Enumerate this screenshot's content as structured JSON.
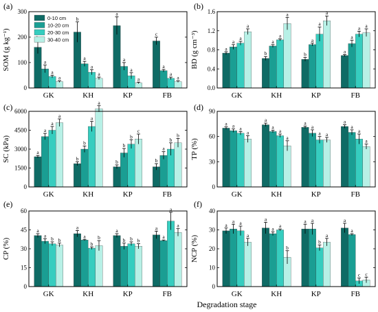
{
  "colors": [
    "#0f6b65",
    "#1a9e93",
    "#36cdbf",
    "#b7f0e6"
  ],
  "x_title": "Degradation stage",
  "chart_data": [
    {
      "type": "bar",
      "panel": "(a)",
      "ylabel": "SOM (g kg⁻¹)",
      "ylim": [
        0,
        300
      ],
      "yticks": [
        "0",
        "100",
        "200",
        "300"
      ],
      "categories": [
        "GK",
        "KH",
        "KP",
        "FB"
      ],
      "legend": [
        "0-10 cm",
        "10-20 cm",
        "20-30 cm",
        "30-40 cm"
      ],
      "series": [
        {
          "name": "0-10 cm",
          "values": [
            160,
            220,
            245,
            185
          ],
          "errors": [
            25,
            40,
            35,
            15
          ],
          "letters": [
            "b",
            "b",
            "a",
            "c"
          ]
        },
        {
          "name": "10-20 cm",
          "values": [
            75,
            95,
            85,
            68
          ],
          "errors": [
            15,
            10,
            15,
            5
          ],
          "letters": [
            "a",
            "a",
            "a",
            "a"
          ]
        },
        {
          "name": "20-30 cm",
          "values": [
            45,
            62,
            48,
            38
          ],
          "errors": [
            5,
            10,
            12,
            5
          ],
          "letters": [
            "a",
            "a",
            "a",
            "a"
          ]
        },
        {
          "name": "30-40 cm",
          "values": [
            25,
            38,
            20,
            25
          ],
          "errors": [
            3,
            5,
            3,
            3
          ],
          "letters": [
            "a",
            "a",
            "a",
            "a"
          ]
        }
      ]
    },
    {
      "type": "bar",
      "panel": "(b)",
      "ylabel": "BD (g cm⁻³)",
      "ylim": [
        0,
        1.6
      ],
      "yticks": [
        "0.0",
        "0.4",
        "0.8",
        "1.2",
        "1.6"
      ],
      "categories": [
        "GK",
        "KH",
        "KP",
        "FB"
      ],
      "series": [
        {
          "name": "0-10 cm",
          "values": [
            0.73,
            0.62,
            0.6,
            0.68
          ],
          "errors": [
            0.03,
            0.04,
            0.04,
            0.02
          ],
          "letters": [
            "a",
            "b",
            "b",
            "a"
          ]
        },
        {
          "name": "10-20 cm",
          "values": [
            0.86,
            0.88,
            0.91,
            0.93
          ],
          "errors": [
            0.05,
            0.03,
            0.03,
            0.07
          ],
          "letters": [
            "a",
            "a",
            "a",
            "a"
          ]
        },
        {
          "name": "20-30 cm",
          "values": [
            0.94,
            1.01,
            1.13,
            1.13
          ],
          "errors": [
            0.04,
            0.02,
            0.15,
            0.06
          ],
          "letters": [
            "a",
            "a",
            "a",
            "a"
          ]
        },
        {
          "name": "30-40 cm",
          "values": [
            1.18,
            1.35,
            1.41,
            1.16
          ],
          "errors": [
            0.06,
            0.13,
            0.1,
            0.08
          ],
          "letters": [
            "a",
            "a",
            "a",
            "a"
          ]
        }
      ]
    },
    {
      "type": "bar",
      "panel": "(c)",
      "ylabel": "SC (kPa)",
      "ylim": [
        0,
        6000
      ],
      "yticks": [
        "0",
        "1500",
        "3000",
        "4500",
        "6000"
      ],
      "categories": [
        "GK",
        "KH",
        "KP",
        "FB"
      ],
      "series": [
        {
          "name": "0-10 cm",
          "values": [
            2400,
            1850,
            1600,
            1600
          ],
          "errors": [
            100,
            150,
            150,
            250
          ],
          "letters": [
            "a",
            "b",
            "b",
            "b"
          ]
        },
        {
          "name": "10-20 cm",
          "values": [
            4000,
            3000,
            2700,
            2500
          ],
          "errors": [
            250,
            250,
            350,
            300
          ],
          "letters": [
            "a",
            "b",
            "b",
            "a"
          ]
        },
        {
          "name": "20-30 cm",
          "values": [
            4500,
            4800,
            3400,
            3000
          ],
          "errors": [
            300,
            400,
            350,
            500
          ],
          "letters": [
            "a",
            "a",
            "b",
            "b"
          ]
        },
        {
          "name": "30-40 cm",
          "values": [
            5100,
            6200,
            3800,
            3500
          ],
          "errors": [
            300,
            250,
            400,
            350
          ],
          "letters": [
            "a",
            "a",
            "c",
            "b"
          ]
        }
      ]
    },
    {
      "type": "bar",
      "panel": "(d)",
      "ylabel": "TP (%)",
      "ylim": [
        0,
        90
      ],
      "yticks": [
        "0",
        "30",
        "60",
        "90"
      ],
      "categories": [
        "GK",
        "KH",
        "KP",
        "FB"
      ],
      "series": [
        {
          "name": "0-10 cm",
          "values": [
            70,
            74,
            71,
            72
          ],
          "errors": [
            1.5,
            2,
            1.5,
            2
          ],
          "letters": [
            "a",
            "a",
            "a",
            "a"
          ]
        },
        {
          "name": "10-20 cm",
          "values": [
            67,
            66,
            64,
            65
          ],
          "errors": [
            2,
            1.5,
            4,
            3
          ],
          "letters": [
            "a",
            "a",
            "a",
            "a"
          ]
        },
        {
          "name": "20-30 cm",
          "values": [
            64,
            61,
            56,
            57
          ],
          "errors": [
            2,
            2,
            4,
            6
          ],
          "letters": [
            "a",
            "a",
            "a",
            "a"
          ]
        },
        {
          "name": "30-40 cm",
          "values": [
            57,
            49,
            56,
            48
          ],
          "errors": [
            4,
            6,
            3,
            3
          ],
          "letters": [
            "a",
            "a",
            "a",
            "a"
          ]
        }
      ]
    },
    {
      "type": "bar",
      "panel": "(e)",
      "ylabel": "CP (%)",
      "ylim": [
        0,
        60
      ],
      "yticks": [
        "0",
        "15",
        "30",
        "45",
        "60"
      ],
      "categories": [
        "GK",
        "KH",
        "KP",
        "FB"
      ],
      "series": [
        {
          "name": "0-10 cm",
          "values": [
            40.5,
            42,
            40.5,
            41
          ],
          "errors": [
            1.5,
            2.5,
            1.5,
            3
          ],
          "letters": [
            "a",
            "a",
            "a",
            "a"
          ]
        },
        {
          "name": "10-20 cm",
          "values": [
            36,
            37,
            32,
            36.5
          ],
          "errors": [
            2,
            0.5,
            2.5,
            0.5
          ],
          "letters": [
            "a",
            "a",
            "b",
            "a"
          ]
        },
        {
          "name": "20-30 cm",
          "values": [
            34,
            30.5,
            34,
            52
          ],
          "errors": [
            1.5,
            1,
            1.5,
            7
          ],
          "letters": [
            "b",
            "b",
            "b",
            "a"
          ]
        },
        {
          "name": "30-40 cm",
          "values": [
            33,
            32.5,
            32,
            43
          ],
          "errors": [
            1.5,
            4,
            2,
            3
          ],
          "letters": [
            "b",
            "b",
            "b",
            "a"
          ]
        }
      ]
    },
    {
      "type": "bar",
      "panel": "(f)",
      "ylabel": "NCP (%)",
      "ylim": [
        0,
        40
      ],
      "yticks": [
        "0",
        "10",
        "20",
        "30",
        "40"
      ],
      "categories": [
        "GK",
        "KH",
        "KP",
        "FB"
      ],
      "series": [
        {
          "name": "0-10 cm",
          "values": [
            29.5,
            31,
            30.5,
            31
          ],
          "errors": [
            1.5,
            3,
            2.5,
            2.5
          ],
          "letters": [
            "a",
            "a",
            "a",
            "a"
          ]
        },
        {
          "name": "10-20 cm",
          "values": [
            30.5,
            28,
            30.5,
            27.5
          ],
          "errors": [
            2.5,
            1,
            3,
            0.5
          ],
          "letters": [
            "a",
            "a",
            "a",
            "a"
          ]
        },
        {
          "name": "20-30 cm",
          "values": [
            29.5,
            30,
            20.5,
            3
          ],
          "errors": [
            2.5,
            0.5,
            1.5,
            1.5
          ],
          "letters": [
            "a",
            "a",
            "b",
            "c"
          ]
        },
        {
          "name": "30-40 cm",
          "values": [
            23.5,
            15.5,
            23.5,
            3.5
          ],
          "errors": [
            2,
            3.5,
            2,
            1.5
          ],
          "letters": [
            "a",
            "b",
            "a",
            "c"
          ]
        }
      ]
    }
  ]
}
